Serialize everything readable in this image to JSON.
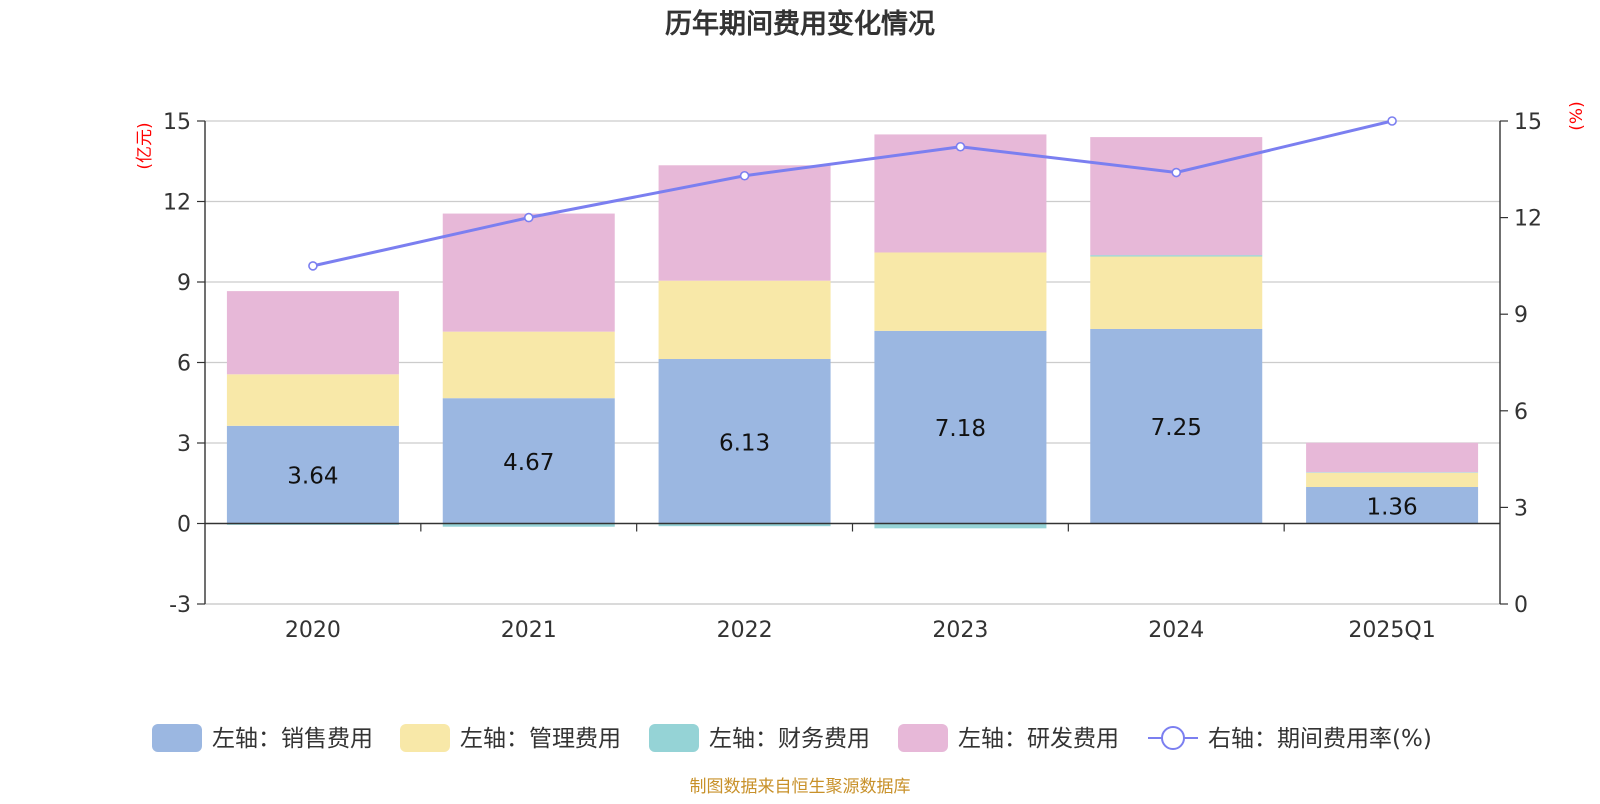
{
  "chart_data": {
    "type": "bar",
    "title": "历年期间费用变化情况",
    "categories": [
      "2020",
      "2021",
      "2022",
      "2023",
      "2024",
      "2025Q1"
    ],
    "left_axis": {
      "unit": "(亿元)",
      "min": -3,
      "max": 15,
      "ticks": [
        -3,
        0,
        3,
        6,
        9,
        12,
        15
      ]
    },
    "right_axis": {
      "unit": "(%)",
      "min": 0,
      "max": 15,
      "ticks": [
        0,
        3,
        6,
        9,
        12,
        15
      ]
    },
    "series": [
      {
        "name": "左轴：销售费用",
        "type": "bar",
        "axis": "left",
        "color": "#9bb7e1",
        "values": [
          3.64,
          4.67,
          6.13,
          7.18,
          7.25,
          1.36
        ],
        "labels": [
          "3.64",
          "4.67",
          "6.13",
          "7.18",
          "7.25",
          "1.36"
        ]
      },
      {
        "name": "左轴：管理费用",
        "type": "bar",
        "axis": "left",
        "color": "#f8e8a8",
        "values": [
          1.92,
          2.48,
          2.92,
          2.92,
          2.7,
          0.53
        ]
      },
      {
        "name": "左轴：财务费用",
        "type": "bar",
        "axis": "left",
        "color": "#95d3d6",
        "values": [
          -0.05,
          -0.12,
          -0.1,
          -0.18,
          0.05,
          0.02
        ]
      },
      {
        "name": "左轴：研发费用",
        "type": "bar",
        "axis": "left",
        "color": "#e7b8d8",
        "values": [
          3.1,
          4.4,
          4.3,
          4.4,
          4.4,
          1.1
        ]
      },
      {
        "name": "右轴：期间费用率(%)",
        "type": "line",
        "axis": "right",
        "color": "#7b7ff0",
        "values": [
          10.5,
          12.0,
          13.3,
          14.2,
          13.4,
          15.0
        ]
      }
    ],
    "legend_position": "bottom",
    "source": "制图数据来自恒生聚源数据库"
  }
}
